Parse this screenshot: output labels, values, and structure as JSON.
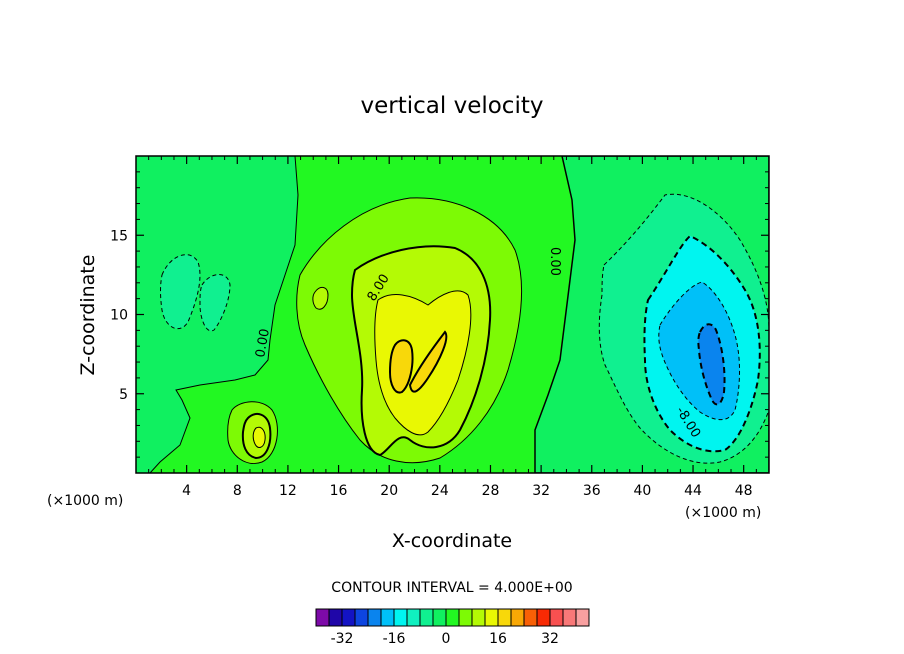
{
  "chart_data": {
    "type": "contour",
    "title": "vertical velocity",
    "xlabel": "X-coordinate",
    "ylabel": "Z-coordinate",
    "x_unit": "(×1000 m)",
    "xlim": [
      0,
      50
    ],
    "ylim": [
      0,
      20
    ],
    "x_ticks": [
      "4",
      "8",
      "12",
      "16",
      "20",
      "24",
      "28",
      "32",
      "36",
      "40",
      "44",
      "48"
    ],
    "y_ticks": [
      "5",
      "10",
      "15"
    ],
    "contour_interval_label": "CONTOUR INTERVAL = 4.000E+00",
    "contour_labels": [
      "8.00",
      "0.00",
      "0.00",
      "-8.00"
    ],
    "features": [
      {
        "kind": "updraft max",
        "x": 21.5,
        "z": 7.0,
        "value": 20
      },
      {
        "kind": "updraft",
        "x": 10,
        "z": 2.5,
        "value": 8
      },
      {
        "kind": "downdraft min",
        "x": 45.5,
        "z": 7.0,
        "value": -16
      },
      {
        "kind": "downdraft",
        "x": 3,
        "z": 11,
        "value": -4
      }
    ],
    "colorbar": {
      "ticks": [
        "-32",
        "-16",
        "0",
        "16",
        "32"
      ],
      "colors": [
        "#7d0aa8",
        "#1f06a8",
        "#1313c4",
        "#0d45e0",
        "#0a84ee",
        "#00c0f8",
        "#00f5f0",
        "#10f0c0",
        "#10f090",
        "#10f060",
        "#22f822",
        "#7dfa05",
        "#b4fa05",
        "#e9f803",
        "#f8d80a",
        "#f8a805",
        "#f86006",
        "#f82a04",
        "#f85050",
        "#f87878",
        "#f8a0a0"
      ]
    }
  }
}
